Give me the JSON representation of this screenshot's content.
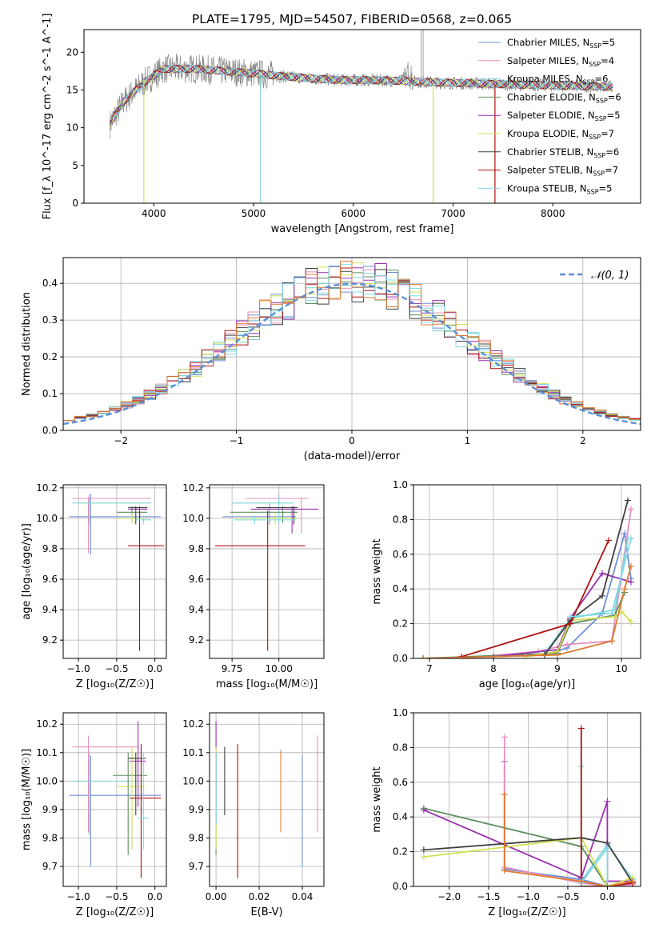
{
  "title": "PLATE=1795, MJD=54507, FIBERID=0568, z=0.065",
  "colors": {
    "model_colors": [
      "#6f8fd6",
      "#e58fbf",
      "#7fd4d4",
      "#5f8f5f",
      "#9a30b0",
      "#d4e050",
      "#404040",
      "#b01010",
      "#80d8e8"
    ],
    "data_grey": "#808080",
    "normal_curve": "#5b8ed6",
    "orange": "#e07a30"
  },
  "chart_data": [
    {
      "id": "spectrum",
      "type": "line",
      "xlabel": "wavelength [Angstrom, rest frame]",
      "ylabel": "Flux [f_λ 10^-17 erg cm^-2 s^-1 A^-1]",
      "xlim": [
        3300,
        8880
      ],
      "ylim": [
        0,
        23
      ],
      "xticks": [
        4000,
        5000,
        6000,
        7000,
        8000
      ],
      "yticks": [
        0,
        5,
        10,
        15,
        20
      ],
      "grid": false,
      "legend": {
        "placement": "upper-right",
        "entries": [
          {
            "name": "Chabrier MILES, N",
            "sub": "SSP",
            "suffix": "=5"
          },
          {
            "name": "Salpeter MILES, N",
            "sub": "SSP",
            "suffix": "=4"
          },
          {
            "name": "Kroupa MILES, N",
            "sub": "SSP",
            "suffix": "=6"
          },
          {
            "name": "Chabrier ELODIE, N",
            "sub": "SSP",
            "suffix": "=6"
          },
          {
            "name": "Salpeter ELODIE, N",
            "sub": "SSP",
            "suffix": "=5"
          },
          {
            "name": "Kroupa ELODIE, N",
            "sub": "SSP",
            "suffix": "=7"
          },
          {
            "name": "Chabrier STELIB, N",
            "sub": "SSP",
            "suffix": "=6"
          },
          {
            "name": "Salpeter STELIB, N",
            "sub": "SSP",
            "suffix": "=7"
          },
          {
            "name": "Kroupa STELIB, N",
            "sub": "SSP",
            "suffix": "=5"
          }
        ]
      },
      "continuum": {
        "x": [
          3560,
          3700,
          3900,
          4100,
          4400,
          4700,
          5000,
          5300,
          5600,
          5900,
          6200,
          6500,
          6800,
          7100,
          7400,
          7700,
          8000,
          8300,
          8600
        ],
        "y": [
          10.5,
          13.5,
          16.0,
          17.8,
          17.8,
          17.5,
          17.2,
          16.8,
          16.5,
          16.3,
          16.3,
          16.2,
          16.0,
          15.9,
          15.8,
          15.7,
          15.6,
          15.5,
          15.4
        ]
      }
    },
    {
      "id": "residual-histogram",
      "type": "line",
      "xlabel": "(data-model)/error",
      "ylabel": "Normed distribution",
      "xlim": [
        -2.5,
        2.5
      ],
      "ylim": [
        0,
        0.47
      ],
      "xticks": [
        -2,
        -1,
        0,
        1,
        2
      ],
      "yticks": [
        0.0,
        0.1,
        0.2,
        0.3,
        0.4
      ],
      "grid": true,
      "bin_width": 0.1,
      "legend_label": "𝒩(0, 1)",
      "normal": {
        "mean": 0,
        "sigma": 1
      }
    },
    {
      "id": "age-vs-Z",
      "type": "scatter",
      "xlabel": "Z [log₁₀(Z/Z☉)]",
      "ylabel": "age [log₁₀(age/yr)]",
      "xlim": [
        -1.2,
        0.15
      ],
      "ylim": [
        9.08,
        10.22
      ],
      "xticks": [
        -1.0,
        -0.5,
        0.0
      ],
      "yticks": [
        9.2,
        9.4,
        9.6,
        9.8,
        10.0,
        10.2
      ],
      "grid": true,
      "points": [
        {
          "x": -0.84,
          "y": 10.01,
          "x_lo": -1.12,
          "x_hi": 0.08,
          "y_lo": 9.76,
          "y_hi": 10.16
        },
        {
          "x": -0.87,
          "y": 10.13,
          "x_lo": -1.08,
          "x_hi": -0.05,
          "y_lo": 9.77,
          "y_hi": 10.14
        },
        {
          "x": -0.86,
          "y": 10.1,
          "x_lo": -1.08,
          "x_hi": -0.05,
          "y_lo": 9.96,
          "y_hi": 10.16
        },
        {
          "x": -0.3,
          "y": 10.04,
          "x_lo": -0.5,
          "x_hi": -0.1,
          "y_lo": 9.97,
          "y_hi": 10.08
        },
        {
          "x": -0.2,
          "y": 10.06,
          "x_lo": -0.35,
          "x_hi": -0.1,
          "y_lo": 10.0,
          "y_hi": 10.08
        },
        {
          "x": -0.3,
          "y": 10.0,
          "x_lo": -0.5,
          "x_hi": -0.12,
          "y_lo": 9.97,
          "y_hi": 10.03
        },
        {
          "x": -0.25,
          "y": 10.07,
          "x_lo": -0.35,
          "x_hi": -0.1,
          "y_lo": 9.96,
          "y_hi": 10.08
        },
        {
          "x": -0.2,
          "y": 9.82,
          "x_lo": -0.35,
          "x_hi": 0.12,
          "y_lo": 9.13,
          "y_hi": 10.05
        },
        {
          "x": -0.15,
          "y": 9.99,
          "x_lo": -0.25,
          "x_hi": -0.05,
          "y_lo": 9.96,
          "y_hi": 10.02
        }
      ]
    },
    {
      "id": "age-vs-mass",
      "type": "scatter",
      "xlabel": "mass [log₁₀(M/M☉)]",
      "ylabel": "",
      "xlim": [
        9.63,
        10.24
      ],
      "ylim": [
        9.08,
        10.22
      ],
      "xticks": [
        9.75,
        10.0
      ],
      "xticklabels": [
        "9.75",
        "10.00"
      ],
      "yticks": [
        9.2,
        9.4,
        9.6,
        9.8,
        10.0,
        10.2
      ],
      "grid": true,
      "points": [
        {
          "x": 9.95,
          "y": 10.01,
          "x_lo": 9.7,
          "x_hi": 10.09,
          "y_lo": 9.96,
          "y_hi": 10.1
        },
        {
          "x": 10.12,
          "y": 10.13,
          "x_lo": 9.82,
          "x_hi": 10.16,
          "y_lo": 9.9,
          "y_hi": 10.14
        },
        {
          "x": 10.0,
          "y": 10.1,
          "x_lo": 9.75,
          "x_hi": 10.08,
          "y_lo": 9.96,
          "y_hi": 10.16
        },
        {
          "x": 10.02,
          "y": 10.04,
          "x_lo": 9.74,
          "x_hi": 10.1,
          "y_lo": 9.97,
          "y_hi": 10.08
        },
        {
          "x": 10.07,
          "y": 10.06,
          "x_lo": 9.85,
          "x_hi": 10.21,
          "y_lo": 9.9,
          "y_hi": 10.08
        },
        {
          "x": 9.98,
          "y": 10.0,
          "x_lo": 9.76,
          "x_hi": 10.1,
          "y_lo": 9.96,
          "y_hi": 10.03
        },
        {
          "x": 10.08,
          "y": 10.07,
          "x_lo": 9.88,
          "x_hi": 10.1,
          "y_lo": 9.96,
          "y_hi": 10.08
        },
        {
          "x": 9.94,
          "y": 9.82,
          "x_lo": 9.66,
          "x_hi": 10.14,
          "y_lo": 9.13,
          "y_hi": 10.05
        },
        {
          "x": 9.87,
          "y": 9.99,
          "x_lo": 9.76,
          "x_hi": 10.09,
          "y_lo": 9.96,
          "y_hi": 10.02
        }
      ]
    },
    {
      "id": "mass-weight-vs-age",
      "type": "line",
      "xlabel": "age [log₁₀(age/yr)]",
      "ylabel": "mass weight",
      "xlim": [
        6.75,
        10.3
      ],
      "ylim": [
        0,
        1.0
      ],
      "xticks": [
        7,
        8,
        9,
        10
      ],
      "yticks": [
        0.0,
        0.2,
        0.4,
        0.6,
        0.8,
        1.0
      ],
      "grid": true,
      "series": [
        {
          "x": [
            6.9,
            8.0,
            8.8,
            9.15,
            9.7,
            10.05,
            10.15
          ],
          "y": [
            0.0,
            0.01,
            0.02,
            0.06,
            0.26,
            0.72,
            0.46
          ]
        },
        {
          "x": [
            7.5,
            8.7,
            9.15,
            9.85,
            10.15
          ],
          "y": [
            0.0,
            0.04,
            0.08,
            0.1,
            0.86
          ]
        },
        {
          "x": [
            8.8,
            9.2,
            9.9,
            10.1
          ],
          "y": [
            0.03,
            0.23,
            0.28,
            0.69
          ]
        },
        {
          "x": [
            6.9,
            9.0,
            9.2,
            9.9,
            10.05
          ],
          "y": [
            0.0,
            0.03,
            0.2,
            0.25,
            0.38
          ]
        },
        {
          "x": [
            8.0,
            9.0,
            9.2,
            9.7,
            10.15
          ],
          "y": [
            0.01,
            0.05,
            0.23,
            0.49,
            0.44
          ]
        },
        {
          "x": [
            8.5,
            9.0,
            9.2,
            9.9,
            10.0,
            10.15
          ],
          "y": [
            0.01,
            0.04,
            0.22,
            0.24,
            0.27,
            0.21
          ]
        },
        {
          "x": [
            8.8,
            9.2,
            9.7,
            10.1
          ],
          "y": [
            0.02,
            0.22,
            0.36,
            0.91
          ]
        },
        {
          "x": [
            7.5,
            9.2,
            9.8
          ],
          "y": [
            0.01,
            0.2,
            0.68
          ]
        },
        {
          "x": [
            9.2,
            9.85,
            10.15
          ],
          "y": [
            0.24,
            0.26,
            0.69
          ]
        },
        {
          "x": [
            6.9,
            9.0,
            9.85,
            10.05,
            10.15
          ],
          "y": [
            0.0,
            0.02,
            0.1,
            0.4,
            0.53
          ]
        }
      ]
    },
    {
      "id": "mass-vs-Z",
      "type": "scatter",
      "xlabel": "Z [log₁₀(Z/Z☉)]",
      "ylabel": "mass [log₁₀(M/M☉)]",
      "xlim": [
        -1.2,
        0.15
      ],
      "ylim": [
        9.63,
        10.24
      ],
      "xticks": [
        -1.0,
        -0.5,
        0.0
      ],
      "yticks": [
        9.7,
        9.8,
        9.9,
        10.0,
        10.1,
        10.2
      ],
      "grid": true,
      "points": [
        {
          "x": -0.84,
          "y": 9.95,
          "x_lo": -1.12,
          "x_hi": 0.08,
          "y_lo": 9.7,
          "y_hi": 10.09
        },
        {
          "x": -0.87,
          "y": 10.12,
          "x_lo": -1.08,
          "x_hi": -0.22,
          "y_lo": 9.82,
          "y_hi": 10.16
        },
        {
          "x": -0.86,
          "y": 10.0,
          "x_lo": -1.12,
          "x_hi": -0.2,
          "y_lo": 9.81,
          "y_hi": 10.1
        },
        {
          "x": -0.35,
          "y": 10.02,
          "x_lo": -0.55,
          "x_hi": -0.1,
          "y_lo": 9.74,
          "y_hi": 10.1
        },
        {
          "x": -0.22,
          "y": 10.07,
          "x_lo": -0.33,
          "x_hi": -0.12,
          "y_lo": 9.91,
          "y_hi": 10.21
        },
        {
          "x": -0.3,
          "y": 9.98,
          "x_lo": -0.48,
          "x_hi": -0.13,
          "y_lo": 9.76,
          "y_hi": 10.12
        },
        {
          "x": -0.25,
          "y": 10.08,
          "x_lo": -0.35,
          "x_hi": -0.12,
          "y_lo": 9.88,
          "y_hi": 10.1
        },
        {
          "x": -0.18,
          "y": 9.94,
          "x_lo": -0.33,
          "x_hi": 0.08,
          "y_lo": 9.66,
          "y_hi": 10.13
        },
        {
          "x": -0.15,
          "y": 9.87,
          "x_lo": -0.23,
          "x_hi": -0.08,
          "y_lo": 9.76,
          "y_hi": 10.1
        }
      ]
    },
    {
      "id": "mass-vs-EBV",
      "type": "scatter",
      "xlabel": "E(B-V)",
      "ylabel": "",
      "xlim": [
        -0.003,
        0.05
      ],
      "ylim": [
        9.63,
        10.24
      ],
      "xticks": [
        0.0,
        0.02,
        0.04
      ],
      "xticklabels": [
        "0.00",
        "0.02",
        "0.04"
      ],
      "yticks": [
        9.7,
        9.8,
        9.9,
        10.0,
        10.1,
        10.2
      ],
      "grid": true,
      "points": [
        {
          "x": 0.04,
          "y": 9.95,
          "x_lo": 0.04,
          "x_hi": 0.04,
          "y_lo": 9.7,
          "y_hi": 10.09
        },
        {
          "x": 0.047,
          "y": 9.99,
          "x_lo": 0.047,
          "x_hi": 0.047,
          "y_lo": 9.82,
          "y_hi": 10.16
        },
        {
          "x": 0.0,
          "y": 9.95,
          "x_lo": 0.0,
          "x_hi": 0.0,
          "y_lo": 9.85,
          "y_hi": 10.1
        },
        {
          "x": 0.0,
          "y": 9.95,
          "x_lo": 0.0,
          "x_hi": 0.0,
          "y_lo": 9.74,
          "y_hi": 10.1
        },
        {
          "x": 0.0,
          "y": 10.05,
          "x_lo": 0.0,
          "x_hi": 0.0,
          "y_lo": 9.91,
          "y_hi": 10.21
        },
        {
          "x": 0.0,
          "y": 9.92,
          "x_lo": 0.0,
          "x_hi": 0.0,
          "y_lo": 9.76,
          "y_hi": 10.12
        },
        {
          "x": 0.004,
          "y": 10.0,
          "x_lo": 0.004,
          "x_hi": 0.004,
          "y_lo": 9.88,
          "y_hi": 10.12
        },
        {
          "x": 0.01,
          "y": 9.92,
          "x_lo": 0.01,
          "x_hi": 0.01,
          "y_lo": 9.66,
          "y_hi": 10.13
        },
        {
          "x": 0.0,
          "y": 9.95,
          "x_lo": 0.0,
          "x_hi": 0.0,
          "y_lo": 9.85,
          "y_hi": 10.1
        },
        {
          "x": 0.03,
          "y": 9.97,
          "x_lo": 0.03,
          "x_hi": 0.03,
          "y_lo": 9.82,
          "y_hi": 10.11
        }
      ]
    },
    {
      "id": "mass-weight-vs-Z",
      "type": "line",
      "xlabel": "Z [log₁₀(Z/Z☉)]",
      "ylabel": "mass weight",
      "xlim": [
        -2.45,
        0.42
      ],
      "ylim": [
        0,
        1.0
      ],
      "xticks": [
        -2.0,
        -1.5,
        -1.0,
        -0.5,
        0.0
      ],
      "yticks": [
        0.0,
        0.2,
        0.4,
        0.6,
        0.8,
        1.0
      ],
      "grid": true,
      "series": [
        {
          "x": [
            -1.3,
            -1.3,
            -0.33,
            0.0,
            0.32
          ],
          "y": [
            0.72,
            0.1,
            0.04,
            0.0,
            0.02
          ]
        },
        {
          "x": [
            -1.3,
            -1.3,
            -0.33,
            0.0,
            0.32
          ],
          "y": [
            0.86,
            0.11,
            0.02,
            0.0,
            0.01
          ]
        },
        {
          "x": [
            -0.33,
            -0.33,
            0.0,
            0.32
          ],
          "y": [
            0.69,
            0.03,
            0.24,
            0.04
          ]
        },
        {
          "x": [
            -2.32,
            -0.33,
            0.0,
            0.32
          ],
          "y": [
            0.45,
            0.23,
            0.0,
            0.02
          ]
        },
        {
          "x": [
            -2.32,
            -0.33,
            0.0,
            0.0,
            0.32
          ],
          "y": [
            0.44,
            0.05,
            0.49,
            0.03,
            0.03
          ]
        },
        {
          "x": [
            -2.32,
            -0.33,
            0.0,
            0.32
          ],
          "y": [
            0.17,
            0.28,
            0.0,
            0.05
          ]
        },
        {
          "x": [
            -2.32,
            -0.33,
            0.0,
            0.32
          ],
          "y": [
            0.21,
            0.28,
            0.25,
            0.02
          ]
        },
        {
          "x": [
            -0.33,
            -0.33,
            0.0,
            0.32
          ],
          "y": [
            0.91,
            0.0,
            0.0,
            0.02
          ]
        },
        {
          "x": [
            -0.33,
            0.0,
            0.0
          ],
          "y": [
            0.02,
            0.22,
            0.0
          ]
        },
        {
          "x": [
            -1.3,
            -1.3,
            -0.33,
            0.0,
            0.32
          ],
          "y": [
            0.53,
            0.09,
            0.03,
            0.0,
            0.03
          ]
        }
      ]
    }
  ]
}
